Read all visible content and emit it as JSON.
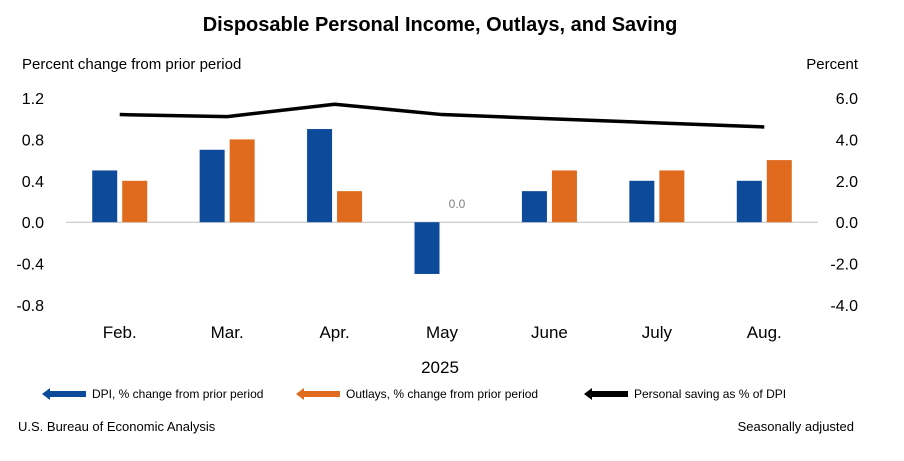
{
  "chart_data": {
    "type": "bar",
    "title": "Disposable Personal Income, Outlays, and Saving",
    "ylabel": "Percent change from prior period",
    "y2label": "Percent",
    "xlabel": "2025",
    "categories": [
      "Feb.",
      "Mar.",
      "Apr.",
      "May",
      "June",
      "July",
      "Aug."
    ],
    "ylim": [
      -0.8,
      1.2
    ],
    "yticks": [
      "1.2",
      "0.8",
      "0.4",
      "0.0",
      "-0.4",
      "-0.8"
    ],
    "y2lim": [
      -4.0,
      6.0
    ],
    "y2ticks": [
      "6.0",
      "4.0",
      "2.0",
      "0.0",
      "-2.0",
      "-4.0"
    ],
    "series": [
      {
        "name": "DPI, % change from prior period",
        "type": "bar",
        "axis": "left",
        "color": "#0D4A9A",
        "values": [
          0.5,
          0.7,
          0.9,
          -0.5,
          0.3,
          0.4,
          0.4
        ]
      },
      {
        "name": "Outlays, % change from prior period",
        "type": "bar",
        "axis": "left",
        "color": "#E06A1E",
        "values": [
          0.4,
          0.8,
          0.3,
          0.0,
          0.5,
          0.5,
          0.6
        ]
      },
      {
        "name": "Personal saving as % of DPI",
        "type": "line",
        "axis": "right",
        "color": "#000000",
        "values": [
          5.2,
          5.1,
          5.7,
          5.2,
          5.0,
          4.8,
          4.6
        ]
      }
    ],
    "data_labels": [
      {
        "series": 1,
        "index": 3,
        "text": "0.0"
      }
    ],
    "grid": false,
    "legend_position": "bottom"
  },
  "footer": {
    "source": "U.S. Bureau of Economic Analysis",
    "note": "Seasonally adjusted"
  }
}
